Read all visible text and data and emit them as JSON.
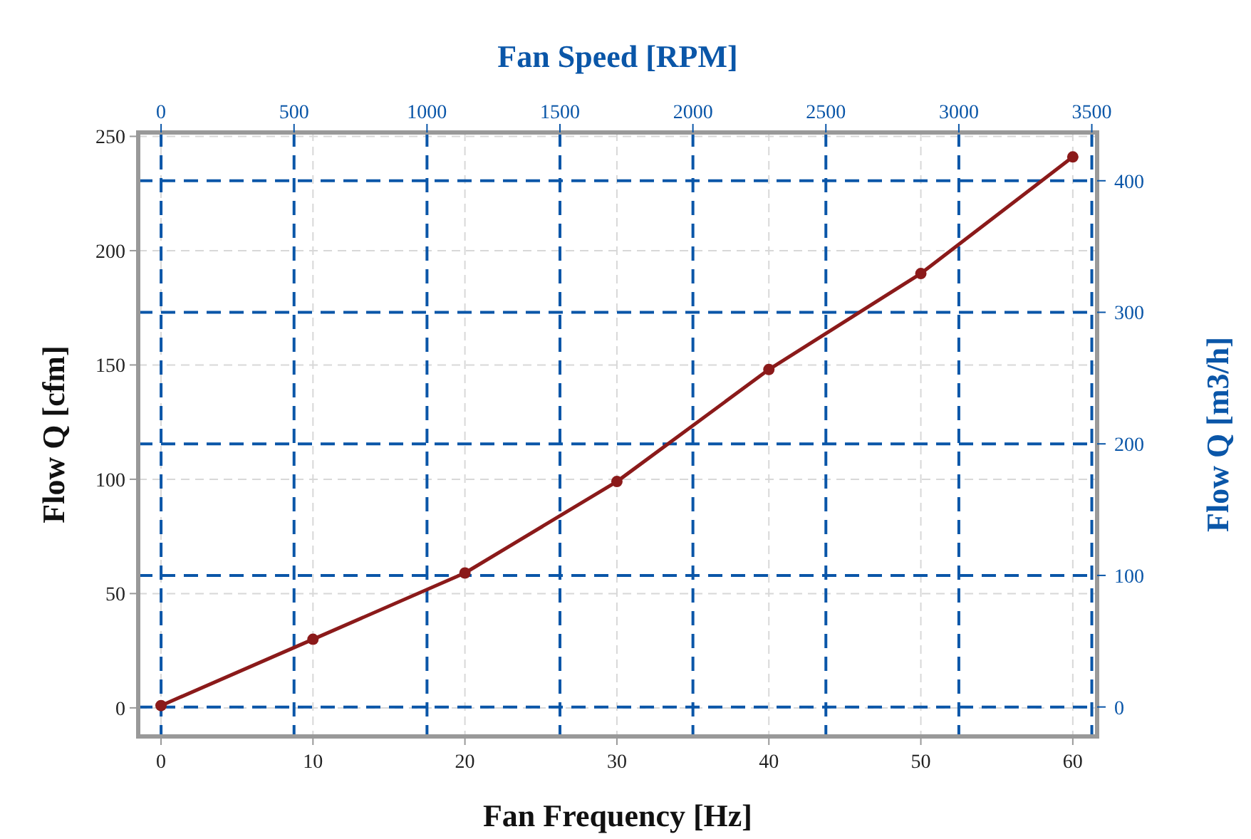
{
  "chart_data": {
    "type": "line",
    "xlabel": "Fan Frequency [Hz]",
    "ylabel": "Flow Q [cfm]",
    "y2label": "Flow Q [m3/h]",
    "x2label": "Fan Speed [RPM]",
    "x": [
      0,
      10,
      20,
      30,
      40,
      50,
      60
    ],
    "series": [
      {
        "color": "#8b1a1a",
        "values": [
          1,
          30,
          59,
          99,
          148,
          190,
          241
        ]
      }
    ],
    "xlim": [
      -1.5,
      61.6
    ],
    "xticks": [
      0,
      10,
      20,
      30,
      40,
      50,
      60
    ],
    "ylim": [
      -12.5,
      251.7
    ],
    "yticks": [
      0,
      50,
      100,
      150,
      200,
      250
    ],
    "x2lim": [
      -86,
      3520
    ],
    "x2ticks": [
      0,
      500,
      1000,
      1500,
      2000,
      2500,
      3000,
      3500
    ],
    "y2lim": [
      -22.4,
      436.7
    ],
    "y2ticks": [
      0,
      100,
      200,
      300,
      400
    ],
    "grid": true,
    "marker": "circle",
    "line_style": "solid"
  }
}
